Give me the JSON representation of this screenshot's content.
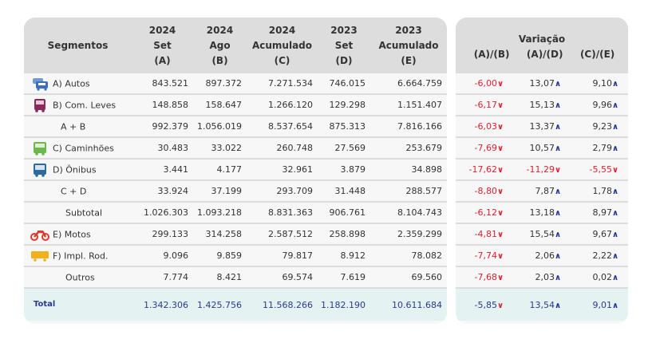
{
  "headers": {
    "segmentos": "Segmentos",
    "cols": [
      {
        "l1": "2024",
        "l2": "Set",
        "l3": "(A)"
      },
      {
        "l1": "2024",
        "l2": "Ago",
        "l3": "(B)"
      },
      {
        "l1": "2024",
        "l2": "Acumulado",
        "l3": "(C)"
      },
      {
        "l1": "2023",
        "l2": "Set",
        "l3": "(D)"
      },
      {
        "l1": "2023",
        "l2": "Acumulado",
        "l3": "(E)"
      }
    ],
    "variacao": "Variação",
    "var_cols": [
      "(A)/(B)",
      "(A)/(D)",
      "(C)/(E)"
    ]
  },
  "rows": [
    {
      "label": "A) Autos",
      "icon": "car-icon",
      "values": [
        "843.521",
        "897.372",
        "7.271.534",
        "746.015",
        "6.664.759"
      ],
      "var": [
        "-6,00",
        "13,07",
        "9,10"
      ],
      "dir": [
        "down",
        "up",
        "up"
      ]
    },
    {
      "label": "B) Com. Leves",
      "icon": "van-icon",
      "values": [
        "148.858",
        "158.647",
        "1.266.120",
        "129.298",
        "1.151.407"
      ],
      "var": [
        "-6,17",
        "15,13",
        "9,96"
      ],
      "dir": [
        "down",
        "up",
        "up"
      ]
    },
    {
      "label": "A + B",
      "icon": "",
      "values": [
        "992.379",
        "1.056.019",
        "8.537.654",
        "875.313",
        "7.816.166"
      ],
      "var": [
        "-6,03",
        "13,37",
        "9,23"
      ],
      "dir": [
        "down",
        "up",
        "up"
      ]
    },
    {
      "label": "C) Caminhões",
      "icon": "truck-icon",
      "values": [
        "30.483",
        "33.022",
        "260.748",
        "27.569",
        "253.679"
      ],
      "var": [
        "-7,69",
        "10,57",
        "2,79"
      ],
      "dir": [
        "down",
        "up",
        "up"
      ]
    },
    {
      "label": "D) Ônibus",
      "icon": "bus-icon",
      "values": [
        "3.441",
        "4.177",
        "32.961",
        "3.879",
        "34.898"
      ],
      "var": [
        "-17,62",
        "-11,29",
        "-5,55"
      ],
      "dir": [
        "down",
        "down",
        "down"
      ]
    },
    {
      "label": "C + D",
      "icon": "",
      "values": [
        "33.924",
        "37.199",
        "293.709",
        "31.448",
        "288.577"
      ],
      "var": [
        "-8,80",
        "7,87",
        "1,78"
      ],
      "dir": [
        "down",
        "up",
        "up"
      ]
    },
    {
      "label": "Subtotal",
      "icon": "",
      "values": [
        "1.026.303",
        "1.093.218",
        "8.831.363",
        "906.761",
        "8.104.743"
      ],
      "var": [
        "-6,12",
        "13,18",
        "8,97"
      ],
      "dir": [
        "down",
        "up",
        "up"
      ]
    },
    {
      "label": "E) Motos",
      "icon": "motorcycle-icon",
      "values": [
        "299.133",
        "314.258",
        "2.587.512",
        "258.898",
        "2.359.299"
      ],
      "var": [
        "-4,81",
        "15,54",
        "9,67"
      ],
      "dir": [
        "down",
        "up",
        "up"
      ]
    },
    {
      "label": "F) Impl. Rod.",
      "icon": "trailer-icon",
      "values": [
        "9.096",
        "9.859",
        "79.817",
        "8.912",
        "78.082"
      ],
      "var": [
        "-7,74",
        "2,06",
        "2,22"
      ],
      "dir": [
        "down",
        "up",
        "up"
      ]
    },
    {
      "label": "Outros",
      "icon": "",
      "values": [
        "7.774",
        "8.421",
        "69.574",
        "7.619",
        "69.560"
      ],
      "var": [
        "-7,68",
        "2,03",
        "0,02"
      ],
      "dir": [
        "down",
        "up",
        "up"
      ]
    }
  ],
  "total": {
    "label": "Total",
    "values": [
      "1.342.306",
      "1.425.756",
      "11.568.266",
      "1.182.190",
      "10.611.684"
    ],
    "var": [
      "-5,85",
      "13,54",
      "9,01"
    ],
    "dir": [
      "down",
      "up",
      "up"
    ]
  },
  "colors": {
    "negative": "#e0202f",
    "up_arrow": "#1c2f9c",
    "total_text": "#2b3a8c",
    "car": "#3a6fc4",
    "van": "#8a2a5a",
    "truck": "#6cb84a",
    "bus": "#2e6a9e",
    "motorcycle": "#e03a2a",
    "trailer": "#f2b01e"
  }
}
